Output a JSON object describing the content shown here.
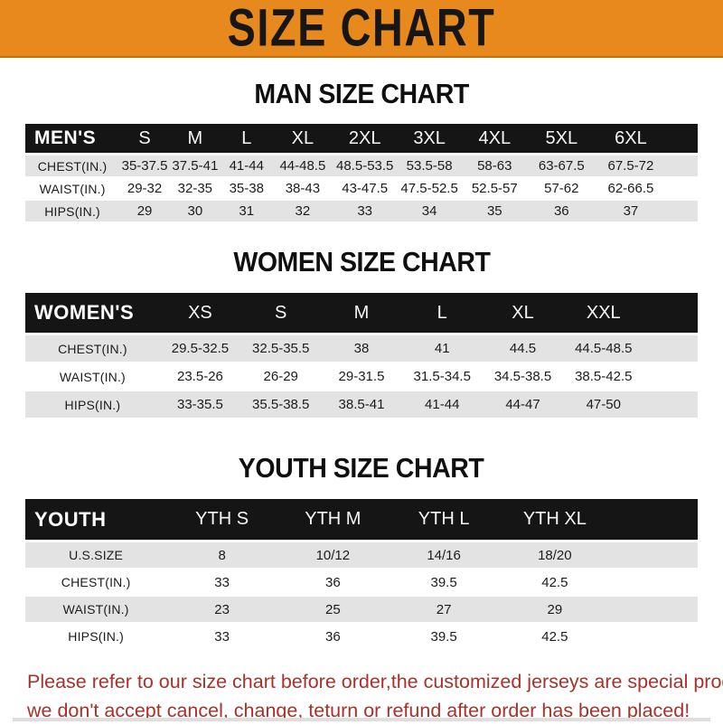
{
  "banner": {
    "title": "SIZE CHART"
  },
  "tables": {
    "men": {
      "heading": "MAN SIZE CHART",
      "header_label": "MEN'S",
      "sizes": [
        "S",
        "M",
        "L",
        "XL",
        "2XL",
        "3XL",
        "4XL",
        "5XL",
        "6XL"
      ],
      "rows": [
        {
          "label": "CHEST(IN.)",
          "values": [
            "35-37.5",
            "37.5-41",
            "41-44",
            "44-48.5",
            "48.5-53.5",
            "53.5-58",
            "58-63",
            "63-67.5",
            "67.5-72"
          ]
        },
        {
          "label": "WAIST(IN.)",
          "values": [
            "29-32",
            "32-35",
            "35-38",
            "38-43",
            "43-47.5",
            "47.5-52.5",
            "52.5-57",
            "57-62",
            "62-66.5"
          ]
        },
        {
          "label": "HIPS(IN.)",
          "values": [
            "29",
            "30",
            "31",
            "32",
            "33",
            "34",
            "35",
            "36",
            "37"
          ]
        }
      ]
    },
    "women": {
      "heading": "WOMEN SIZE CHART",
      "header_label": "WOMEN'S",
      "sizes": [
        "XS",
        "S",
        "M",
        "L",
        "XL",
        "XXL"
      ],
      "rows": [
        {
          "label": "CHEST(IN.)",
          "values": [
            "29.5-32.5",
            "32.5-35.5",
            "38",
            "41",
            "44.5",
            "44.5-48.5"
          ]
        },
        {
          "label": "WAIST(IN.)",
          "values": [
            "23.5-26",
            "26-29",
            "29-31.5",
            "31.5-34.5",
            "34.5-38.5",
            "38.5-42.5"
          ]
        },
        {
          "label": "HIPS(IN.)",
          "values": [
            "33-35.5",
            "35.5-38.5",
            "38.5-41",
            "41-44",
            "44-47",
            "47-50"
          ]
        }
      ]
    },
    "youth": {
      "heading": "YOUTH SIZE CHART",
      "header_label": "YOUTH",
      "sizes": [
        "YTH S",
        "YTH M",
        "YTH L",
        "YTH XL"
      ],
      "rows": [
        {
          "label": "U.S.SIZE",
          "values": [
            "8",
            "10/12",
            "14/16",
            "18/20"
          ]
        },
        {
          "label": "CHEST(IN.)",
          "values": [
            "33",
            "36",
            "39.5",
            "42.5"
          ]
        },
        {
          "label": "WAIST(IN.)",
          "values": [
            "23",
            "25",
            "27",
            "29"
          ]
        },
        {
          "label": "HIPS(IN.)",
          "values": [
            "33",
            "36",
            "39.5",
            "42.5"
          ]
        }
      ]
    }
  },
  "note": {
    "line1": "Please refer to our size chart before order,the customized jerseys are special products,",
    "line2": "we don't accept cancel, change, teturn or refund after order has been placed!"
  },
  "colors": {
    "banner_orange": "#E8891E",
    "bar_black": "#151515",
    "row_gray": "#E3E3E3",
    "note_red": "#A5332B"
  }
}
